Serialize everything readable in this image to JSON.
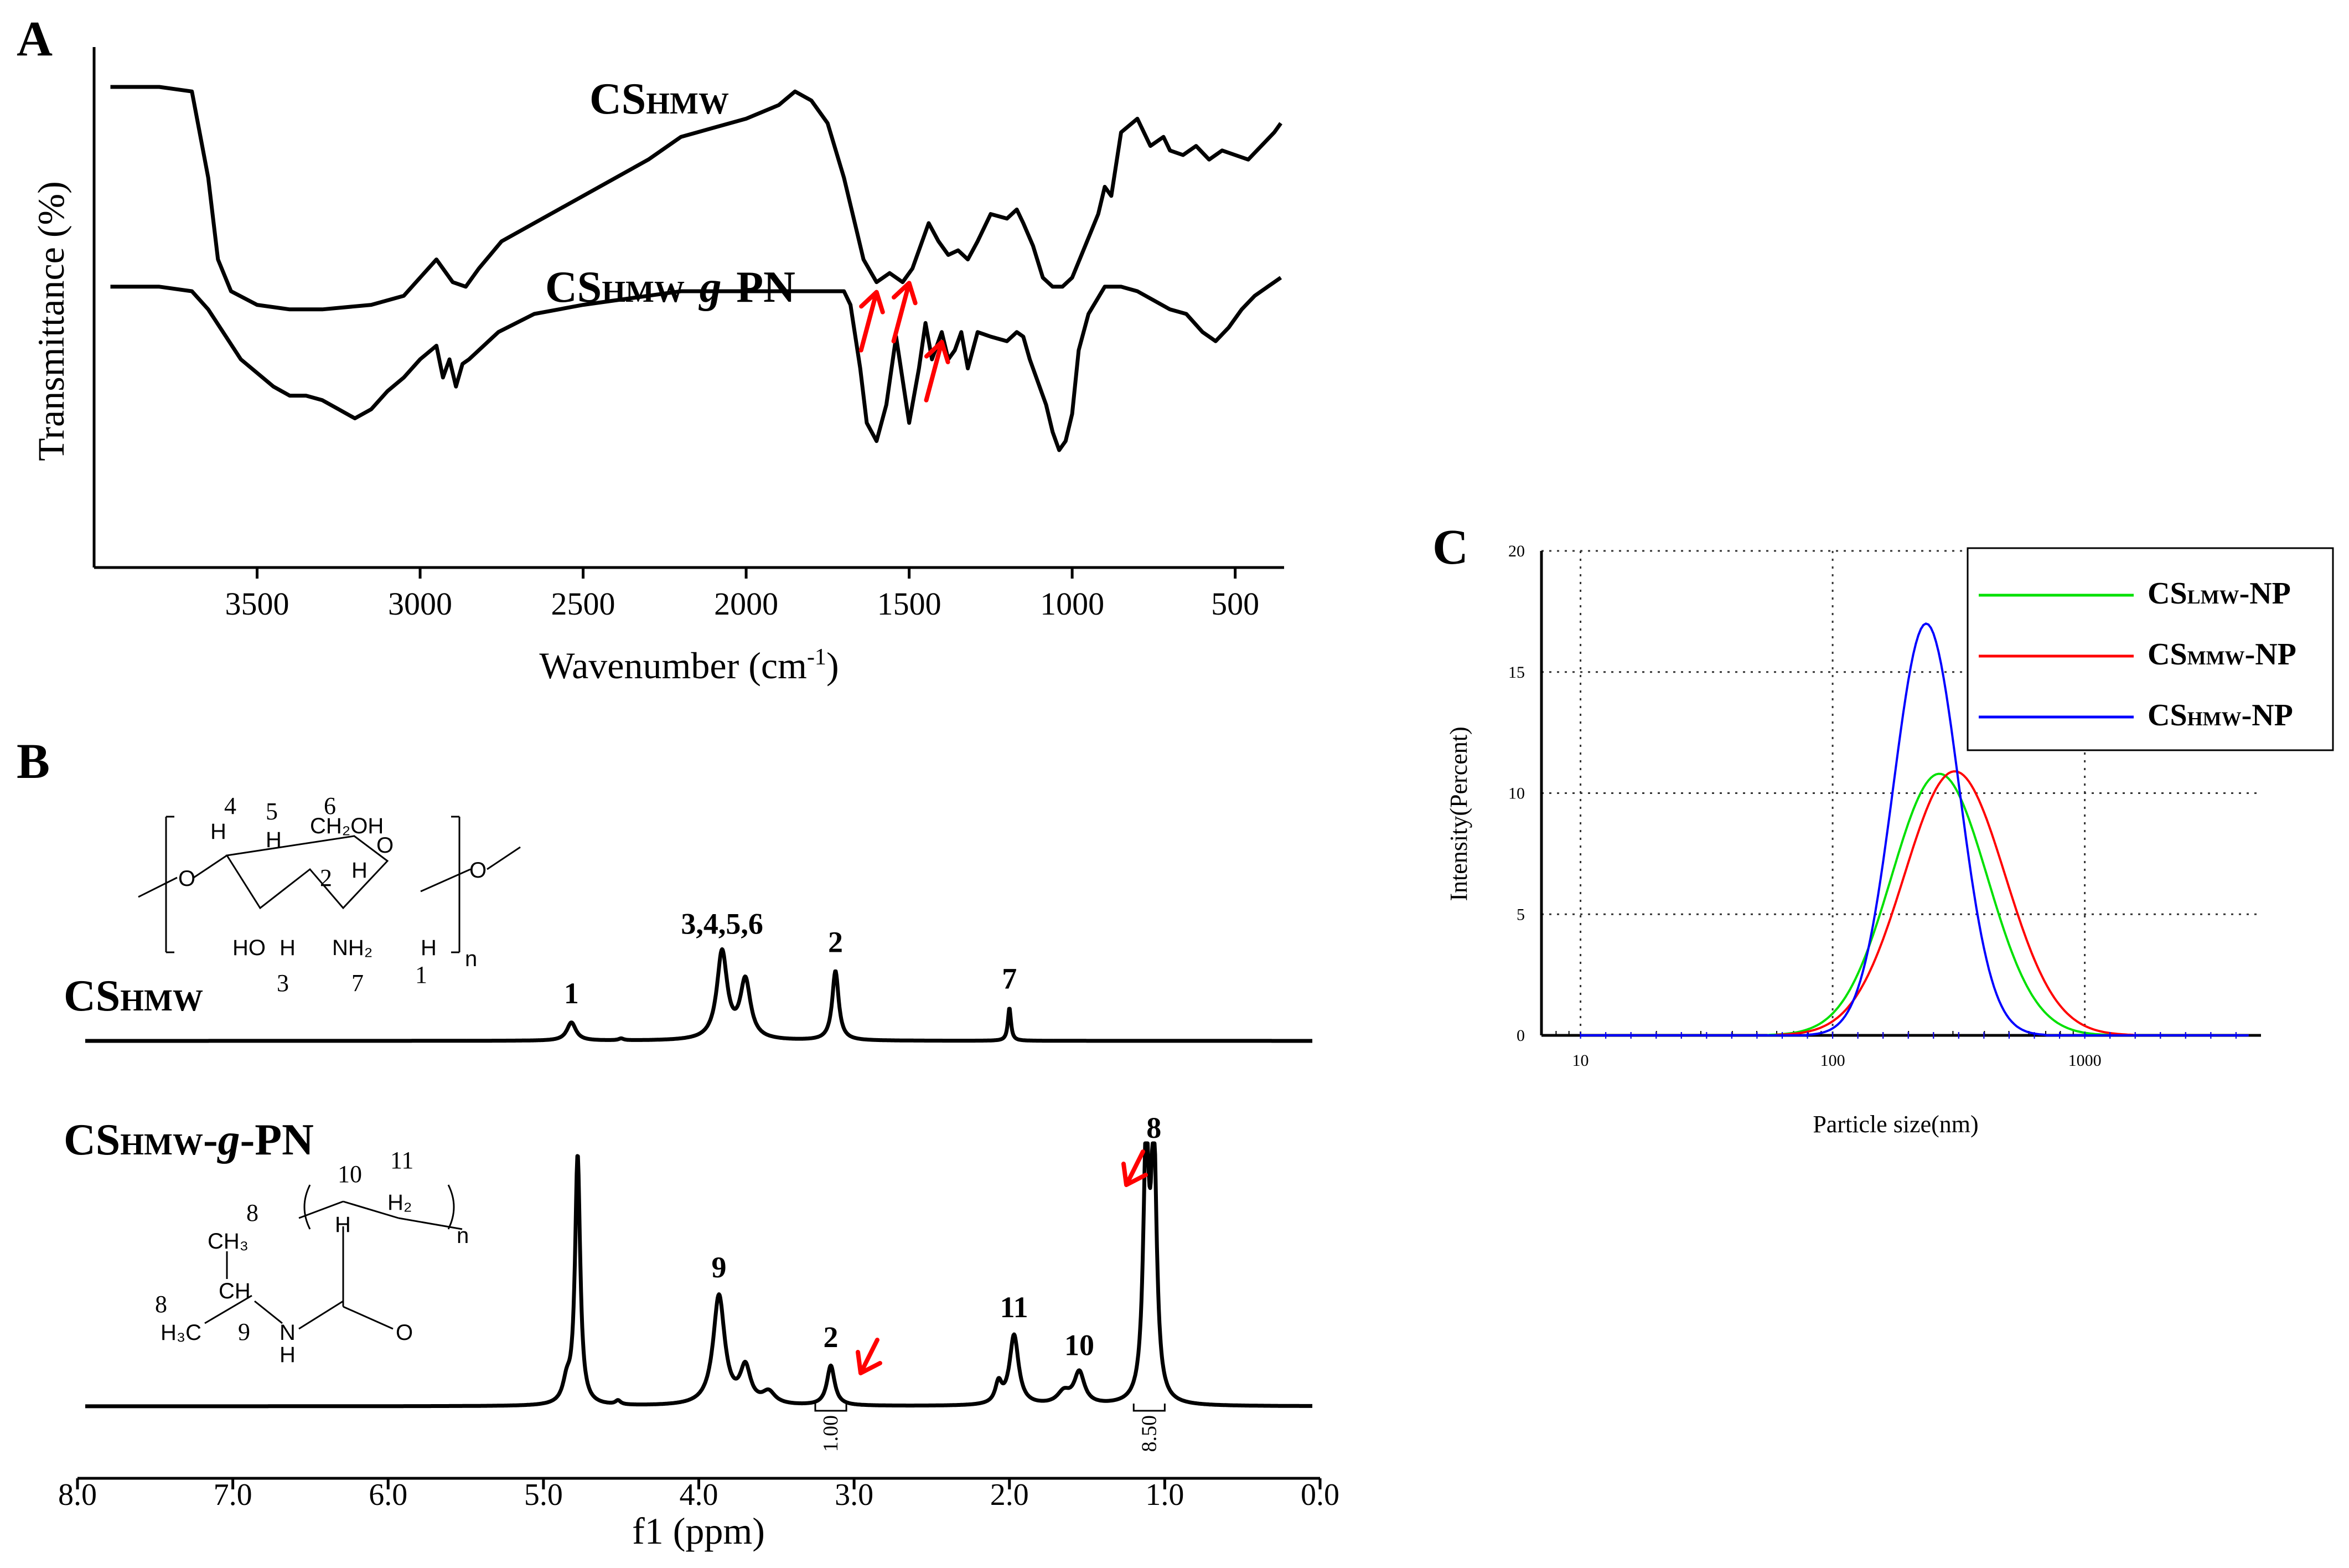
{
  "panels": {
    "A": {
      "letter": "A",
      "ylabel": "Transmittance (%)",
      "xlabel_main": "Wavenumber (cm",
      "xlabel_sup": "-1",
      "xlabel_tail": ")",
      "trace_top": {
        "base": "CS",
        "sub": "HMW"
      },
      "trace_bottom": {
        "base": "CS",
        "sub": "HMW",
        "mid": "-",
        "g": "g",
        "tail": "-PN"
      }
    },
    "B": {
      "letter": "B",
      "xlabel": "f1 (ppm)",
      "trace_top": {
        "base": "CS",
        "sub": "HMW"
      },
      "trace_bottom": {
        "base": "CS",
        "sub": "HMW",
        "mid": "-",
        "g": "g",
        "tail": "-PN"
      },
      "integrals": [
        "1.00",
        "8.50"
      ]
    },
    "C": {
      "letter": "C",
      "ylabel": "Intensity(Percent)",
      "xlabel": "Particle size(nm)"
    }
  },
  "chart_data": [
    {
      "id": "A",
      "type": "line",
      "title": "",
      "xlabel": "Wavenumber (cm-1)",
      "ylabel": "Transmittance (%)",
      "xlim": [
        4000,
        350
      ],
      "xticks": [
        3500,
        3000,
        2500,
        2000,
        1500,
        1000,
        500
      ],
      "xtick_labels": [
        "3500",
        "3000",
        "2500",
        "2000",
        "1500",
        "1000",
        "500"
      ],
      "series": [
        {
          "name": "CSHMW",
          "x": [
            3950,
            3800,
            3700,
            3650,
            3620,
            3580,
            3500,
            3400,
            3300,
            3150,
            3050,
            3000,
            2950,
            2900,
            2860,
            2820,
            2750,
            2600,
            2450,
            2300,
            2200,
            2100,
            2000,
            1900,
            1850,
            1800,
            1750,
            1700,
            1660,
            1640,
            1600,
            1560,
            1520,
            1490,
            1440,
            1410,
            1380,
            1350,
            1320,
            1290,
            1250,
            1200,
            1170,
            1150,
            1120,
            1090,
            1060,
            1030,
            1000,
            960,
            920,
            900,
            880,
            850,
            800,
            760,
            720,
            700,
            660,
            620,
            580,
            540,
            500,
            460,
            420,
            380,
            360
          ],
          "y": [
            90,
            90,
            89,
            70,
            52,
            45,
            42,
            41,
            41,
            42,
            44,
            48,
            52,
            47,
            46,
            50,
            56,
            62,
            68,
            74,
            79,
            81,
            83,
            86,
            89,
            87,
            82,
            70,
            58,
            52,
            47,
            49,
            47,
            50,
            60,
            56,
            53,
            54,
            52,
            56,
            62,
            61,
            63,
            60,
            55,
            48,
            46,
            46,
            48,
            55,
            62,
            68,
            66,
            80,
            83,
            77,
            79,
            76,
            75,
            77,
            74,
            76,
            75,
            74,
            77,
            80,
            82
          ]
        },
        {
          "name": "CSHMW-g-PN",
          "x": [
            3950,
            3800,
            3700,
            3650,
            3550,
            3450,
            3400,
            3350,
            3300,
            3250,
            3200,
            3150,
            3100,
            3050,
            3000,
            2950,
            2930,
            2910,
            2890,
            2870,
            2850,
            2820,
            2760,
            2650,
            2500,
            2400,
            2300,
            2200,
            2100,
            2000,
            1900,
            1800,
            1750,
            1700,
            1680,
            1650,
            1630,
            1600,
            1570,
            1540,
            1500,
            1470,
            1450,
            1430,
            1400,
            1380,
            1360,
            1340,
            1320,
            1290,
            1250,
            1200,
            1170,
            1150,
            1130,
            1100,
            1080,
            1060,
            1040,
            1020,
            1000,
            980,
            950,
            900,
            850,
            800,
            750,
            700,
            650,
            600,
            560,
            520,
            480,
            440,
            400,
            360
          ],
          "y": [
            46,
            46,
            45,
            41,
            30,
            24,
            22,
            22,
            21,
            19,
            17,
            19,
            23,
            26,
            30,
            33,
            26,
            30,
            24,
            29,
            30,
            32,
            36,
            40,
            42,
            43,
            44,
            45,
            45,
            45,
            45,
            45,
            45,
            45,
            42,
            28,
            16,
            12,
            20,
            35,
            16,
            28,
            38,
            30,
            36,
            30,
            32,
            36,
            28,
            36,
            35,
            34,
            36,
            35,
            30,
            24,
            20,
            14,
            10,
            12,
            18,
            32,
            40,
            46,
            46,
            45,
            43,
            41,
            40,
            36,
            34,
            37,
            41,
            44,
            46,
            48
          ]
        }
      ],
      "annotations": [
        {
          "type": "arrow",
          "target_x": 1600,
          "series": "CSHMW"
        },
        {
          "type": "arrow",
          "target_x": 1500,
          "series": "CSHMW"
        },
        {
          "type": "arrow",
          "target_x": 1400,
          "series": "CSHMW-g-PN"
        }
      ]
    },
    {
      "id": "B",
      "type": "line",
      "title": "",
      "xlabel": "f1 (ppm)",
      "ylabel": "",
      "xlim": [
        8.0,
        0.0
      ],
      "xticks": [
        8.0,
        7.0,
        6.0,
        5.0,
        4.0,
        3.0,
        2.0,
        1.0,
        0.0
      ],
      "xtick_labels": [
        "8.0",
        "7.0",
        "6.0",
        "5.0",
        "4.0",
        "3.0",
        "2.0",
        "1.0",
        "0.0"
      ],
      "series": [
        {
          "name": "CSHMW",
          "peaks": [
            {
              "ppm": 4.82,
              "height": 0.1,
              "width": 0.035,
              "label": "1"
            },
            {
              "ppm": 4.5,
              "height": 0.01,
              "width": 0.02,
              "label": ""
            },
            {
              "ppm": 3.85,
              "height": 0.48,
              "width": 0.04,
              "label": "3,4,5,6"
            },
            {
              "ppm": 3.7,
              "height": 0.32,
              "width": 0.04,
              "label": ""
            },
            {
              "ppm": 3.12,
              "height": 0.38,
              "width": 0.025,
              "label": "2"
            },
            {
              "ppm": 2.0,
              "height": 0.18,
              "width": 0.012,
              "label": "7"
            }
          ]
        },
        {
          "name": "CSHMW-g-PN",
          "peaks": [
            {
              "ppm": 4.78,
              "height": 1.25,
              "width": 0.02,
              "label": ""
            },
            {
              "ppm": 4.85,
              "height": 0.1,
              "width": 0.03,
              "label": ""
            },
            {
              "ppm": 4.52,
              "height": 0.02,
              "width": 0.02,
              "label": ""
            },
            {
              "ppm": 3.87,
              "height": 0.55,
              "width": 0.045,
              "label": "9"
            },
            {
              "ppm": 3.7,
              "height": 0.18,
              "width": 0.04,
              "label": ""
            },
            {
              "ppm": 3.55,
              "height": 0.06,
              "width": 0.05,
              "label": ""
            },
            {
              "ppm": 3.15,
              "height": 0.2,
              "width": 0.03,
              "label": "2"
            },
            {
              "ppm": 2.07,
              "height": 0.1,
              "width": 0.025,
              "label": ""
            },
            {
              "ppm": 1.97,
              "height": 0.35,
              "width": 0.035,
              "label": "11"
            },
            {
              "ppm": 1.65,
              "height": 0.06,
              "width": 0.05,
              "label": ""
            },
            {
              "ppm": 1.55,
              "height": 0.16,
              "width": 0.04,
              "label": "10"
            },
            {
              "ppm": 1.12,
              "height": 1.25,
              "width": 0.022,
              "label": ""
            },
            {
              "ppm": 1.07,
              "height": 1.25,
              "width": 0.022,
              "label": "8"
            }
          ]
        }
      ],
      "integrals": [
        {
          "from": 3.25,
          "to": 3.05,
          "value": "1.00"
        },
        {
          "from": 1.2,
          "to": 1.0,
          "value": "8.50"
        }
      ]
    },
    {
      "id": "C",
      "type": "line",
      "title": "",
      "xlabel": "Particle size(nm)",
      "ylabel": "Intensity(Percent)",
      "xscale": "log",
      "xlim": [
        7,
        5000
      ],
      "ylim": [
        0,
        20
      ],
      "yticks": [
        0,
        5,
        10,
        15,
        20
      ],
      "ytick_labels": [
        "0",
        "5",
        "10",
        "15",
        "20"
      ],
      "xticks": [
        10,
        100,
        1000
      ],
      "xtick_labels": [
        "10",
        "100",
        "1000"
      ],
      "grid": true,
      "legend_position": "top-right",
      "series": [
        {
          "name": "CSLMW-NP",
          "color": "#00e000",
          "peak": 10.8,
          "center_nm": 265,
          "sigma_log10": 0.19
        },
        {
          "name": "CSMMW-NP",
          "color": "#ff0000",
          "peak": 10.9,
          "center_nm": 305,
          "sigma_log10": 0.2
        },
        {
          "name": "CSHMW-NP",
          "color": "#0000ff",
          "peak": 17.0,
          "center_nm": 235,
          "sigma_log10": 0.13
        }
      ],
      "legend": [
        {
          "base": "CS",
          "sub": "LMW",
          "tail": "-NP",
          "color": "#00e000"
        },
        {
          "base": "CS",
          "sub": "MMW",
          "tail": "-NP",
          "color": "#ff0000"
        },
        {
          "base": "CS",
          "sub": "HMW",
          "tail": "-NP",
          "color": "#0000ff"
        }
      ]
    }
  ],
  "colors": {
    "arrow": "#ff0000",
    "axis": "#000000"
  }
}
